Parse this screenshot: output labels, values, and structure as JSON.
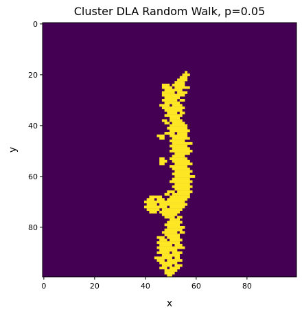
{
  "chart_data": {
    "type": "heatmap",
    "title": "Cluster DLA Random Walk, p=0.05",
    "xlabel": "x",
    "ylabel": "y",
    "xlim": [
      -0.5,
      99.5
    ],
    "ylim": [
      99.5,
      -0.5
    ],
    "y_axis_inverted": true,
    "grid": false,
    "colormap": "viridis",
    "background_value": 0,
    "cluster_value": 1,
    "x_ticks": [
      0,
      20,
      40,
      60,
      80
    ],
    "y_ticks": [
      0,
      20,
      40,
      60,
      80
    ],
    "colors": {
      "background": "#440154",
      "cluster": "#fde725"
    },
    "cluster_rows": [
      {
        "y": 19,
        "x": [
          [
            56,
            56
          ]
        ]
      },
      {
        "y": 20,
        "x": [
          [
            55,
            57
          ]
        ]
      },
      {
        "y": 21,
        "x": [
          [
            54,
            56
          ]
        ]
      },
      {
        "y": 22,
        "x": [
          [
            53,
            56
          ]
        ]
      },
      {
        "y": 23,
        "x": [
          [
            52,
            55
          ]
        ]
      },
      {
        "y": 24,
        "x": [
          [
            47,
            49
          ],
          [
            51,
            55
          ]
        ]
      },
      {
        "y": 25,
        "x": [
          [
            47,
            50
          ],
          [
            52,
            57
          ]
        ]
      },
      {
        "y": 26,
        "x": [
          [
            48,
            54
          ]
        ]
      },
      {
        "y": 27,
        "x": [
          [
            47,
            51
          ],
          [
            53,
            56
          ]
        ]
      },
      {
        "y": 28,
        "x": [
          [
            47,
            55
          ]
        ]
      },
      {
        "y": 29,
        "x": [
          [
            48,
            53
          ]
        ]
      },
      {
        "y": 30,
        "x": [
          [
            47,
            52
          ],
          [
            54,
            55
          ]
        ]
      },
      {
        "y": 31,
        "x": [
          [
            48,
            53
          ]
        ]
      },
      {
        "y": 32,
        "x": [
          [
            46,
            49
          ],
          [
            51,
            54
          ]
        ]
      },
      {
        "y": 33,
        "x": [
          [
            47,
            55
          ]
        ]
      },
      {
        "y": 34,
        "x": [
          [
            48,
            54
          ]
        ]
      },
      {
        "y": 35,
        "x": [
          [
            49,
            52
          ],
          [
            54,
            55
          ]
        ]
      },
      {
        "y": 36,
        "x": [
          [
            48,
            54
          ]
        ]
      },
      {
        "y": 37,
        "x": [
          [
            50,
            53
          ]
        ]
      },
      {
        "y": 38,
        "x": [
          [
            47,
            48
          ],
          [
            50,
            54
          ]
        ]
      },
      {
        "y": 39,
        "x": [
          [
            48,
            49
          ],
          [
            51,
            55
          ]
        ]
      },
      {
        "y": 40,
        "x": [
          [
            50,
            56
          ]
        ]
      },
      {
        "y": 41,
        "x": [
          [
            49,
            56
          ]
        ]
      },
      {
        "y": 42,
        "x": [
          [
            50,
            57
          ]
        ]
      },
      {
        "y": 43,
        "x": [
          [
            48,
            51
          ],
          [
            53,
            56
          ]
        ]
      },
      {
        "y": 44,
        "x": [
          [
            45,
            47
          ],
          [
            50,
            56
          ]
        ]
      },
      {
        "y": 45,
        "x": [
          [
            46,
            47
          ],
          [
            51,
            57
          ]
        ]
      },
      {
        "y": 46,
        "x": [
          [
            50,
            55
          ]
        ]
      },
      {
        "y": 47,
        "x": [
          [
            51,
            58
          ]
        ]
      },
      {
        "y": 48,
        "x": [
          [
            50,
            56
          ]
        ]
      },
      {
        "y": 49,
        "x": [
          [
            51,
            57
          ]
        ]
      },
      {
        "y": 50,
        "x": [
          [
            50,
            58
          ]
        ]
      },
      {
        "y": 51,
        "x": [
          [
            52,
            57
          ]
        ]
      },
      {
        "y": 52,
        "x": [
          [
            51,
            55
          ]
        ]
      },
      {
        "y": 53,
        "x": [
          [
            46,
            47
          ],
          [
            50,
            56
          ]
        ]
      },
      {
        "y": 54,
        "x": [
          [
            46,
            48
          ],
          [
            51,
            57
          ]
        ]
      },
      {
        "y": 55,
        "x": [
          [
            46,
            47
          ],
          [
            52,
            58
          ]
        ]
      },
      {
        "y": 56,
        "x": [
          [
            50,
            56
          ]
        ]
      },
      {
        "y": 57,
        "x": [
          [
            51,
            57
          ]
        ]
      },
      {
        "y": 58,
        "x": [
          [
            52,
            58
          ]
        ]
      },
      {
        "y": 59,
        "x": [
          [
            51,
            57
          ]
        ]
      },
      {
        "y": 60,
        "x": [
          [
            52,
            59
          ]
        ]
      },
      {
        "y": 61,
        "x": [
          [
            51,
            57
          ]
        ]
      },
      {
        "y": 62,
        "x": [
          [
            50,
            58
          ]
        ]
      },
      {
        "y": 63,
        "x": [
          [
            52,
            57
          ]
        ]
      },
      {
        "y": 64,
        "x": [
          [
            51,
            58
          ]
        ]
      },
      {
        "y": 65,
        "x": [
          [
            52,
            57
          ]
        ]
      },
      {
        "y": 66,
        "x": [
          [
            49,
            51
          ],
          [
            53,
            58
          ]
        ]
      },
      {
        "y": 67,
        "x": [
          [
            48,
            49
          ],
          [
            51,
            57
          ]
        ]
      },
      {
        "y": 68,
        "x": [
          [
            42,
            46
          ],
          [
            50,
            57
          ]
        ]
      },
      {
        "y": 69,
        "x": [
          [
            41,
            43
          ],
          [
            45,
            47
          ],
          [
            49,
            56
          ]
        ]
      },
      {
        "y": 70,
        "x": [
          [
            40,
            55
          ]
        ]
      },
      {
        "y": 71,
        "x": [
          [
            41,
            44
          ],
          [
            46,
            56
          ]
        ]
      },
      {
        "y": 72,
        "x": [
          [
            40,
            48
          ],
          [
            50,
            55
          ]
        ]
      },
      {
        "y": 73,
        "x": [
          [
            41,
            45
          ],
          [
            47,
            54
          ]
        ]
      },
      {
        "y": 74,
        "x": [
          [
            42,
            44
          ],
          [
            46,
            53
          ]
        ]
      },
      {
        "y": 75,
        "x": [
          [
            47,
            52
          ]
        ]
      },
      {
        "y": 76,
        "x": [
          [
            48,
            51
          ],
          [
            53,
            54
          ]
        ]
      },
      {
        "y": 77,
        "x": [
          [
            50,
            53
          ]
        ]
      },
      {
        "y": 78,
        "x": [
          [
            49,
            54
          ]
        ]
      },
      {
        "y": 79,
        "x": [
          [
            48,
            53
          ]
        ]
      },
      {
        "y": 80,
        "x": [
          [
            49,
            55
          ]
        ]
      },
      {
        "y": 81,
        "x": [
          [
            48,
            54
          ]
        ]
      },
      {
        "y": 82,
        "x": [
          [
            47,
            52
          ],
          [
            54,
            55
          ]
        ]
      },
      {
        "y": 83,
        "x": [
          [
            48,
            53
          ]
        ]
      },
      {
        "y": 84,
        "x": [
          [
            45,
            47
          ],
          [
            49,
            53
          ]
        ]
      },
      {
        "y": 85,
        "x": [
          [
            46,
            48
          ],
          [
            50,
            54
          ]
        ]
      },
      {
        "y": 86,
        "x": [
          [
            45,
            53
          ]
        ]
      },
      {
        "y": 87,
        "x": [
          [
            46,
            50
          ],
          [
            52,
            54
          ]
        ]
      },
      {
        "y": 88,
        "x": [
          [
            45,
            55
          ]
        ]
      },
      {
        "y": 89,
        "x": [
          [
            46,
            52
          ]
        ]
      },
      {
        "y": 90,
        "x": [
          [
            45,
            49
          ],
          [
            51,
            54
          ]
        ]
      },
      {
        "y": 91,
        "x": [
          [
            47,
            53
          ]
        ]
      },
      {
        "y": 92,
        "x": [
          [
            44,
            50
          ],
          [
            52,
            53
          ]
        ]
      },
      {
        "y": 93,
        "x": [
          [
            45,
            47
          ],
          [
            49,
            54
          ]
        ]
      },
      {
        "y": 94,
        "x": [
          [
            46,
            52
          ]
        ]
      },
      {
        "y": 95,
        "x": [
          [
            47,
            50
          ],
          [
            52,
            54
          ]
        ]
      },
      {
        "y": 96,
        "x": [
          [
            46,
            48
          ],
          [
            50,
            53
          ]
        ]
      },
      {
        "y": 97,
        "x": [
          [
            48,
            52
          ]
        ]
      },
      {
        "y": 98,
        "x": [
          [
            48,
            51
          ]
        ]
      },
      {
        "y": 99,
        "x": [
          [
            49,
            50
          ]
        ]
      }
    ]
  }
}
